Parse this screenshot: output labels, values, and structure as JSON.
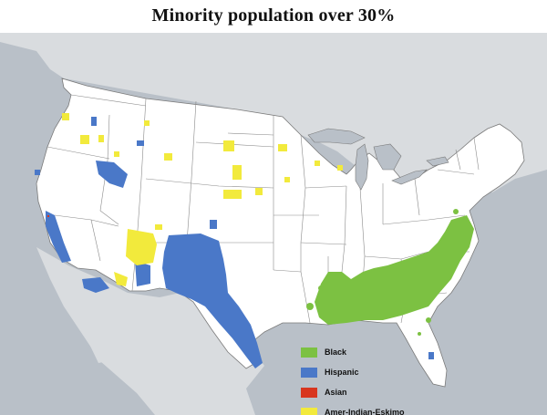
{
  "title": "Minority population over 30%",
  "legend": {
    "items": [
      {
        "key": "black",
        "label": "Black",
        "color": "#7cc142"
      },
      {
        "key": "hispanic",
        "label": "Hispanic",
        "color": "#4a78c8"
      },
      {
        "key": "asian",
        "label": "Asian",
        "color": "#d8351e"
      },
      {
        "key": "amer",
        "label": "Amer-Indian-Eskimo",
        "color": "#f2ea3c"
      }
    ]
  },
  "colors": {
    "land": "#ffffff",
    "outside_land": "#d9dcdf",
    "water": "#b9c0c8",
    "border": "#7a7a7a"
  }
}
